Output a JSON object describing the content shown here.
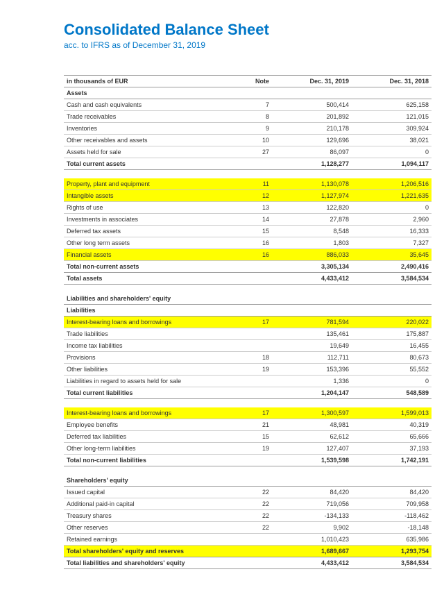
{
  "title": "Consolidated Balance Sheet",
  "subtitle": "acc. to IFRS as of December 31, 2019",
  "headers": {
    "col1": "in thousands of EUR",
    "col2": "Note",
    "col3": "Dec. 31, 2019",
    "col4": "Dec. 31, 2018"
  },
  "colors": {
    "brand": "#0077c8",
    "highlight": "#ffff00",
    "border_light": "#cccccc",
    "border_dark": "#999999",
    "text": "#333333",
    "bg": "#ffffff"
  },
  "rows": [
    {
      "type": "section",
      "label": "Assets"
    },
    {
      "type": "row",
      "label": "Cash and cash equivalents",
      "note": "7",
      "v19": "500,414",
      "v18": "625,158"
    },
    {
      "type": "row",
      "label": "Trade receivables",
      "note": "8",
      "v19": "201,892",
      "v18": "121,015"
    },
    {
      "type": "row",
      "label": "Inventories",
      "note": "9",
      "v19": "210,178",
      "v18": "309,924"
    },
    {
      "type": "row",
      "label": "Other receivables and assets",
      "note": "10",
      "v19": "129,696",
      "v18": "38,021"
    },
    {
      "type": "row",
      "label": "Assets held for sale",
      "note": "27",
      "v19": "86,097",
      "v18": "0"
    },
    {
      "type": "total",
      "label": "Total current assets",
      "note": "",
      "v19": "1,128,277",
      "v18": "1,094,117"
    },
    {
      "type": "gap"
    },
    {
      "type": "row",
      "label": "Property, plant and equipment",
      "note": "11",
      "v19": "1,130,078",
      "v18": "1,206,516",
      "hl": true
    },
    {
      "type": "row",
      "label": "Intangible assets",
      "note": "12",
      "v19": "1,127,974",
      "v18": "1,221,635",
      "hl": true
    },
    {
      "type": "row",
      "label": "Rights of use",
      "note": "13",
      "v19": "122,820",
      "v18": "0"
    },
    {
      "type": "row",
      "label": "Investments in associates",
      "note": "14",
      "v19": "27,878",
      "v18": "2,960"
    },
    {
      "type": "row",
      "label": "Deferred tax assets",
      "note": "15",
      "v19": "8,548",
      "v18": "16,333"
    },
    {
      "type": "row",
      "label": "Other long term assets",
      "note": "16",
      "v19": "1,803",
      "v18": "7,327"
    },
    {
      "type": "row",
      "label": "Financial assets",
      "note": "16",
      "v19": "886,033",
      "v18": "35,645",
      "hlwide": true
    },
    {
      "type": "total",
      "label": "Total non-current assets",
      "note": "",
      "v19": "3,305,134",
      "v18": "2,490,416"
    },
    {
      "type": "total",
      "label": "Total assets",
      "note": "",
      "v19": "4,433,412",
      "v18": "3,584,534"
    },
    {
      "type": "gap"
    },
    {
      "type": "section",
      "label": "Liabilities and shareholders' equity"
    },
    {
      "type": "section",
      "label": "Liabilities"
    },
    {
      "type": "row",
      "label": "Interest-bearing loans and borrowings",
      "note": "17",
      "v19": "781,594",
      "v18": "220,022",
      "hl": true
    },
    {
      "type": "row",
      "label": "Trade liabilities",
      "note": "",
      "v19": "135,461",
      "v18": "175,887"
    },
    {
      "type": "row",
      "label": "Income tax liabilities",
      "note": "",
      "v19": "19,649",
      "v18": "16,455"
    },
    {
      "type": "row",
      "label": "Provisions",
      "note": "18",
      "v19": "112,711",
      "v18": "80,673"
    },
    {
      "type": "row",
      "label": "Other liabilities",
      "note": "19",
      "v19": "153,396",
      "v18": "55,552"
    },
    {
      "type": "row",
      "label": "Liabilities in regard to assets held for sale",
      "note": "",
      "v19": "1,336",
      "v18": "0"
    },
    {
      "type": "total",
      "label": "Total current liabilities",
      "note": "",
      "v19": "1,204,147",
      "v18": "548,589"
    },
    {
      "type": "gap"
    },
    {
      "type": "row",
      "label": "Interest-bearing loans and borrowings",
      "note": "17",
      "v19": "1,300,597",
      "v18": "1,599,013",
      "hl": true
    },
    {
      "type": "row",
      "label": "Employee benefits",
      "note": "21",
      "v19": "48,981",
      "v18": "40,319"
    },
    {
      "type": "row",
      "label": "Deferred tax liabilities",
      "note": "15",
      "v19": "62,612",
      "v18": "65,666"
    },
    {
      "type": "row",
      "label": "Other long-term liabilities",
      "note": "19",
      "v19": "127,407",
      "v18": "37,193"
    },
    {
      "type": "total",
      "label": "Total non-current liabilities",
      "note": "",
      "v19": "1,539,598",
      "v18": "1,742,191"
    },
    {
      "type": "gap"
    },
    {
      "type": "section",
      "label": "Shareholders' equity"
    },
    {
      "type": "row",
      "label": "Issued capital",
      "note": "22",
      "v19": "84,420",
      "v18": "84,420"
    },
    {
      "type": "row",
      "label": "Additional paid-in capital",
      "note": "22",
      "v19": "719,056",
      "v18": "709,958"
    },
    {
      "type": "row",
      "label": "Treasury shares",
      "note": "22",
      "v19": "-134,133",
      "v18": "-118,462"
    },
    {
      "type": "row",
      "label": "Other reserves",
      "note": "22",
      "v19": "9,902",
      "v18": "-18,148"
    },
    {
      "type": "row",
      "label": "Retained earnings",
      "note": "",
      "v19": "1,010,423",
      "v18": "635,986"
    },
    {
      "type": "total",
      "label": "Total shareholders' equity and reserves",
      "note": "",
      "v19": "1,689,667",
      "v18": "1,293,754",
      "hlwide": true
    },
    {
      "type": "total",
      "label": "Total liabilities and shareholders' equity",
      "note": "",
      "v19": "4,433,412",
      "v18": "3,584,534"
    }
  ]
}
